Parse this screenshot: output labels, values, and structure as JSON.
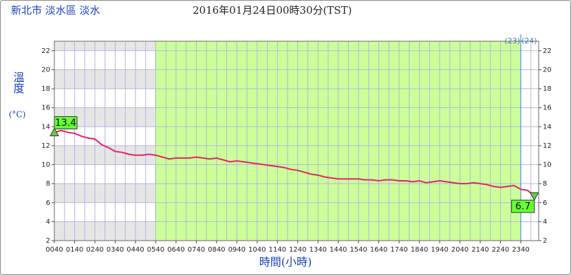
{
  "chart_data": {
    "type": "line",
    "title": "新北市 淡水區 淡水",
    "subtitle": "2016年01月24日00時30分(TST)",
    "y_label": "溫度",
    "y_unit": "(°C)",
    "x_label": "時間(小時)",
    "day_labels": [
      "(23)",
      "(24)"
    ],
    "categories": [
      "0040",
      null,
      null,
      "0140",
      null,
      null,
      "0240",
      null,
      null,
      "0340",
      null,
      null,
      "0440",
      null,
      null,
      "0540",
      null,
      null,
      "0640",
      null,
      null,
      "0740",
      null,
      null,
      "0840",
      null,
      null,
      "0940",
      null,
      null,
      "1040",
      null,
      null,
      "1140",
      null,
      null,
      "1240",
      null,
      null,
      "1340",
      null,
      null,
      "1440",
      null,
      null,
      "1540",
      null,
      null,
      "1640",
      null,
      null,
      "1740",
      null,
      null,
      "1840",
      null,
      null,
      "1940",
      null,
      null,
      "2040",
      null,
      null,
      "2140",
      null,
      null,
      "2240",
      null,
      null,
      "2340",
      null,
      null
    ],
    "series": [
      {
        "name": "溫度",
        "color": "#e3206b",
        "values": [
          13.4,
          13.6,
          13.4,
          13.3,
          13.0,
          12.8,
          12.7,
          12.1,
          11.8,
          11.4,
          11.3,
          11.1,
          11.0,
          11.0,
          11.1,
          11.0,
          10.8,
          10.6,
          10.7,
          10.7,
          10.7,
          10.8,
          10.7,
          10.6,
          10.7,
          10.5,
          10.3,
          10.4,
          10.3,
          10.2,
          10.1,
          10.0,
          9.9,
          9.8,
          9.7,
          9.5,
          9.4,
          9.2,
          9.0,
          8.9,
          8.7,
          8.6,
          8.5,
          8.5,
          8.5,
          8.5,
          8.4,
          8.4,
          8.3,
          8.4,
          8.4,
          8.3,
          8.3,
          8.2,
          8.3,
          8.1,
          8.2,
          8.3,
          8.2,
          8.1,
          8.0,
          8.0,
          8.1,
          8.0,
          7.9,
          7.7,
          7.6,
          7.7,
          7.8,
          7.4,
          7.3,
          6.7
        ],
        "value_labels": [
          "13.4",
          null,
          null,
          null,
          null,
          null,
          null,
          null,
          null,
          null,
          null,
          null,
          null,
          null,
          null,
          null,
          null,
          null,
          null,
          null,
          null,
          null,
          null,
          null,
          null,
          null,
          null,
          null,
          null,
          null,
          null,
          null,
          null,
          null,
          null,
          null,
          null,
          null,
          null,
          null,
          null,
          null,
          null,
          null,
          null,
          null,
          null,
          null,
          null,
          null,
          null,
          null,
          null,
          null,
          null,
          null,
          null,
          null,
          null,
          null,
          null,
          null,
          null,
          null,
          null,
          null,
          null,
          null,
          null,
          null,
          null,
          "6.7"
        ]
      }
    ],
    "ylim": [
      2,
      23
    ],
    "yticks": [
      2,
      4,
      6,
      8,
      10,
      12,
      14,
      16,
      18,
      20,
      22
    ],
    "grid": true
  }
}
